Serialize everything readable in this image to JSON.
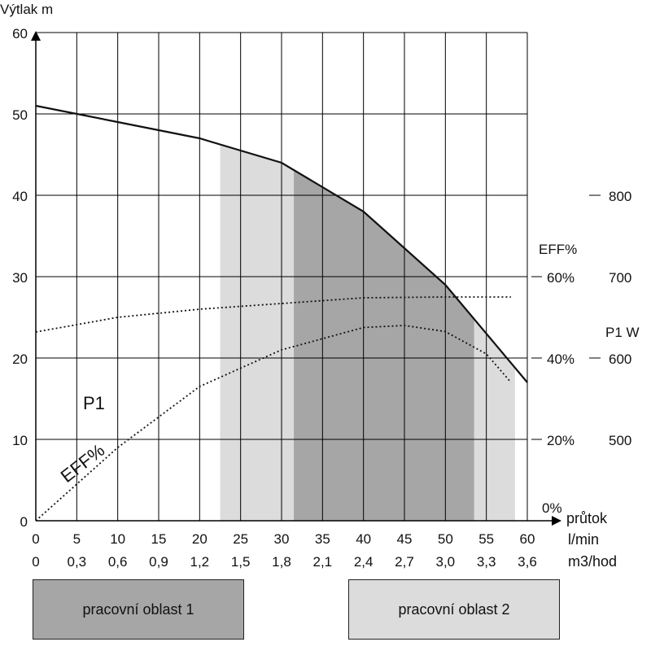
{
  "chart_data": {
    "type": "line",
    "yaxis": {
      "label": "Výtlak m",
      "range": [
        0,
        60
      ],
      "ticks": [
        "0",
        "10",
        "20",
        "30",
        "40",
        "50",
        "60"
      ]
    },
    "xaxis": {
      "range": [
        0,
        60
      ],
      "flow_label_1": "průtok",
      "flow_label_2": "l/min",
      "flow_label_3": "m3/hod",
      "lmin_ticks": [
        "0",
        "5",
        "10",
        "15",
        "20",
        "25",
        "30",
        "35",
        "40",
        "45",
        "50",
        "55",
        "60"
      ],
      "m3h_ticks": [
        "0",
        "0,3",
        "0,6",
        "0,9",
        "1,2",
        "1,5",
        "1,8",
        "2,1",
        "2,4",
        "2,7",
        "3,0",
        "3,3",
        "3,6"
      ]
    },
    "eff_axis": {
      "label": "EFF%",
      "ticks": [
        {
          "label": "0%",
          "value": 0
        },
        {
          "label": "20%",
          "value": 20
        },
        {
          "label": "40%",
          "value": 40
        },
        {
          "label": "60%",
          "value": 60
        }
      ]
    },
    "p1_axis": {
      "label": "P1 W",
      "ticks": [
        {
          "label": "500",
          "value": 500
        },
        {
          "label": "600",
          "value": 600
        },
        {
          "label": "700",
          "value": 700
        },
        {
          "label": "800",
          "value": 800
        }
      ]
    },
    "series": [
      {
        "name": "Výtlak",
        "axis": "head",
        "style": "solid",
        "x": [
          0,
          10,
          20,
          30,
          40,
          50,
          60
        ],
        "y": [
          51,
          49,
          47,
          44,
          38,
          29,
          17
        ]
      },
      {
        "name": "EFF%",
        "axis": "eff",
        "style": "dotted",
        "x": [
          0,
          10,
          20,
          30,
          40,
          45,
          50,
          55,
          58
        ],
        "y": [
          0,
          18,
          33,
          42,
          47.5,
          48,
          46.5,
          41,
          34
        ]
      },
      {
        "name": "P1",
        "axis": "p1",
        "style": "dotted",
        "x": [
          0,
          10,
          20,
          30,
          40,
          50,
          58
        ],
        "y": [
          632,
          650,
          660,
          667,
          674,
          675,
          675
        ]
      }
    ],
    "regions": [
      {
        "name": "pracovní oblast 1",
        "x": [
          31.5,
          53.5
        ],
        "color": "#a6a6a6"
      },
      {
        "name": "pracovní oblast 2",
        "x": [
          22.5,
          58.5
        ],
        "color": "#dcdcdc"
      }
    ],
    "curve_labels": {
      "p1": "P1",
      "eff": "EFF%"
    },
    "grid": true
  },
  "legend": {
    "area1": {
      "label": "pracovní oblast 1",
      "color": "#a6a6a6"
    },
    "area2": {
      "label": "pracovní oblast 2",
      "color": "#dcdcdc"
    }
  }
}
